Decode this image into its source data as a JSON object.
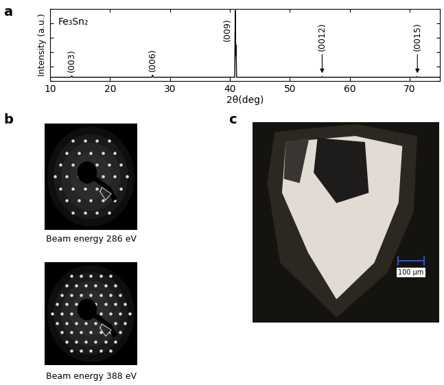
{
  "panel_labels": [
    "a",
    "b",
    "c"
  ],
  "chart_data": {
    "type": "line",
    "title": "Fe₃Sn₂",
    "x_label": "2θ(deg)",
    "y_label": "Intensity (a.u.)",
    "x": [
      10,
      13.45,
      13.6,
      13.75,
      26.95,
      27.1,
      27.25,
      40.8,
      40.9,
      40.96,
      41.02,
      41.12,
      55.3,
      55.4,
      55.5,
      71.1,
      71.2,
      71.3,
      75
    ],
    "values": [
      0.05,
      0.05,
      0.07,
      0.05,
      0.05,
      0.08,
      0.05,
      0.05,
      0.98,
      0.35,
      0.5,
      0.05,
      0.05,
      0.06,
      0.05,
      0.05,
      0.06,
      0.05,
      0.05
    ],
    "color": "#000000",
    "xlim": [
      10,
      75
    ],
    "xticks": [
      10,
      20,
      30,
      40,
      50,
      60,
      70
    ],
    "ylim": [
      0,
      1
    ],
    "yticks": [
      0,
      0.2,
      0.4,
      0.6,
      0.8,
      1.0
    ],
    "tick_labels": "x",
    "annotations": [
      {
        "text": "(003)",
        "x": 13.6,
        "y": 0.12
      },
      {
        "text": "(006)",
        "x": 27.1,
        "y": 0.13
      },
      {
        "text": "(009)",
        "x": 39.6,
        "y": 0.55
      },
      {
        "text": "(0012)",
        "x": 55.4,
        "y": 0.42,
        "arrow_to": 0.08
      },
      {
        "text": "(0015)",
        "x": 71.3,
        "y": 0.42,
        "arrow_to": 0.08
      }
    ]
  },
  "leed": [
    {
      "caption": "Beam energy 286 eV"
    },
    {
      "caption": "Beam energy 388 eV"
    }
  ],
  "micrograph": {
    "scale_bar": "100 μm"
  }
}
